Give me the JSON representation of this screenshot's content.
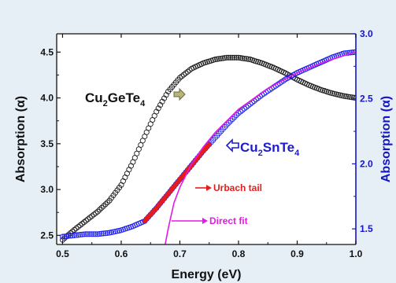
{
  "chart_data": {
    "type": "scatter",
    "title": "",
    "xlabel": "Energy (eV)",
    "ylabel_left": "Absorption (α)",
    "ylabel_right": "Absorption (α)",
    "xlim": [
      0.49,
      1.0
    ],
    "ylim_left": [
      2.4,
      4.7
    ],
    "ylim_right": [
      1.38,
      3.0
    ],
    "x_ticks": [
      "0.5",
      "0.6",
      "0.7",
      "0.8",
      "0.9",
      "1.0"
    ],
    "y_ticks_left": [
      "2.5",
      "3.0",
      "3.5",
      "4.0",
      "4.5"
    ],
    "y_ticks_right": [
      "1.5",
      "2.0",
      "2.5",
      "3.0"
    ],
    "grid": false,
    "series": [
      {
        "name": "Cu2GeTe4",
        "axis": "left",
        "color": "#1a1a1a",
        "marker": "open-circle",
        "x": [
          0.5,
          0.52,
          0.54,
          0.56,
          0.58,
          0.6,
          0.62,
          0.64,
          0.66,
          0.68,
          0.7,
          0.72,
          0.74,
          0.76,
          0.78,
          0.8,
          0.82,
          0.84,
          0.86,
          0.88,
          0.9,
          0.92,
          0.94,
          0.96,
          0.98,
          1.0
        ],
        "y": [
          2.45,
          2.56,
          2.66,
          2.76,
          2.88,
          3.05,
          3.3,
          3.58,
          3.85,
          4.07,
          4.22,
          4.32,
          4.38,
          4.42,
          4.44,
          4.44,
          4.42,
          4.38,
          4.33,
          4.27,
          4.2,
          4.14,
          4.09,
          4.05,
          4.02,
          4.0
        ]
      },
      {
        "name": "Cu2SnTe4",
        "axis": "right",
        "color": "#1c1cf0",
        "marker": "open-circle",
        "x": [
          0.5,
          0.52,
          0.54,
          0.56,
          0.58,
          0.6,
          0.62,
          0.64,
          0.66,
          0.68,
          0.7,
          0.72,
          0.74,
          0.76,
          0.78,
          0.8,
          0.82,
          0.84,
          0.86,
          0.88,
          0.9,
          0.92,
          0.94,
          0.96,
          0.98,
          1.0
        ],
        "y": [
          1.44,
          1.45,
          1.46,
          1.46,
          1.47,
          1.49,
          1.52,
          1.56,
          1.66,
          1.77,
          1.88,
          1.99,
          2.1,
          2.2,
          2.3,
          2.39,
          2.46,
          2.53,
          2.59,
          2.65,
          2.7,
          2.74,
          2.78,
          2.82,
          2.85,
          2.86
        ]
      },
      {
        "name": "Urbach tail",
        "axis": "right",
        "color": "#e61c1c",
        "marker": "filled-circle",
        "x": [
          0.64,
          0.66,
          0.68,
          0.7,
          0.72,
          0.74,
          0.75
        ],
        "y": [
          1.56,
          1.66,
          1.77,
          1.88,
          1.99,
          2.1,
          2.15
        ]
      },
      {
        "name": "Direct fit",
        "axis": "right",
        "color": "#e619e6",
        "marker": "line",
        "x": [
          0.675,
          0.68,
          0.69,
          0.7,
          0.72,
          0.74,
          0.76,
          0.8,
          0.85,
          0.9,
          0.95,
          1.0
        ],
        "y": [
          1.38,
          1.5,
          1.7,
          1.82,
          2.0,
          2.13,
          2.24,
          2.42,
          2.58,
          2.7,
          2.79,
          2.86
        ]
      }
    ],
    "annotations": [
      {
        "text": "Urbach tail",
        "color": "#e61c1c"
      },
      {
        "text": "Direct fit",
        "color": "#e619e6"
      }
    ],
    "series_labels": {
      "ge": {
        "main": "Cu",
        "sub1": "2",
        "mid": "GeTe",
        "sub2": "4",
        "color": "#111111",
        "arrow_color": "#9e9a5c"
      },
      "sn": {
        "main": "Cu",
        "sub1": "2",
        "mid": "SnTe",
        "sub2": "4",
        "color": "#1c1ccc"
      }
    },
    "colors": {
      "background": "#e6eef6",
      "plot_background": "#ffffff",
      "left_axis": "#111111",
      "right_axis": "#1515c8"
    }
  }
}
